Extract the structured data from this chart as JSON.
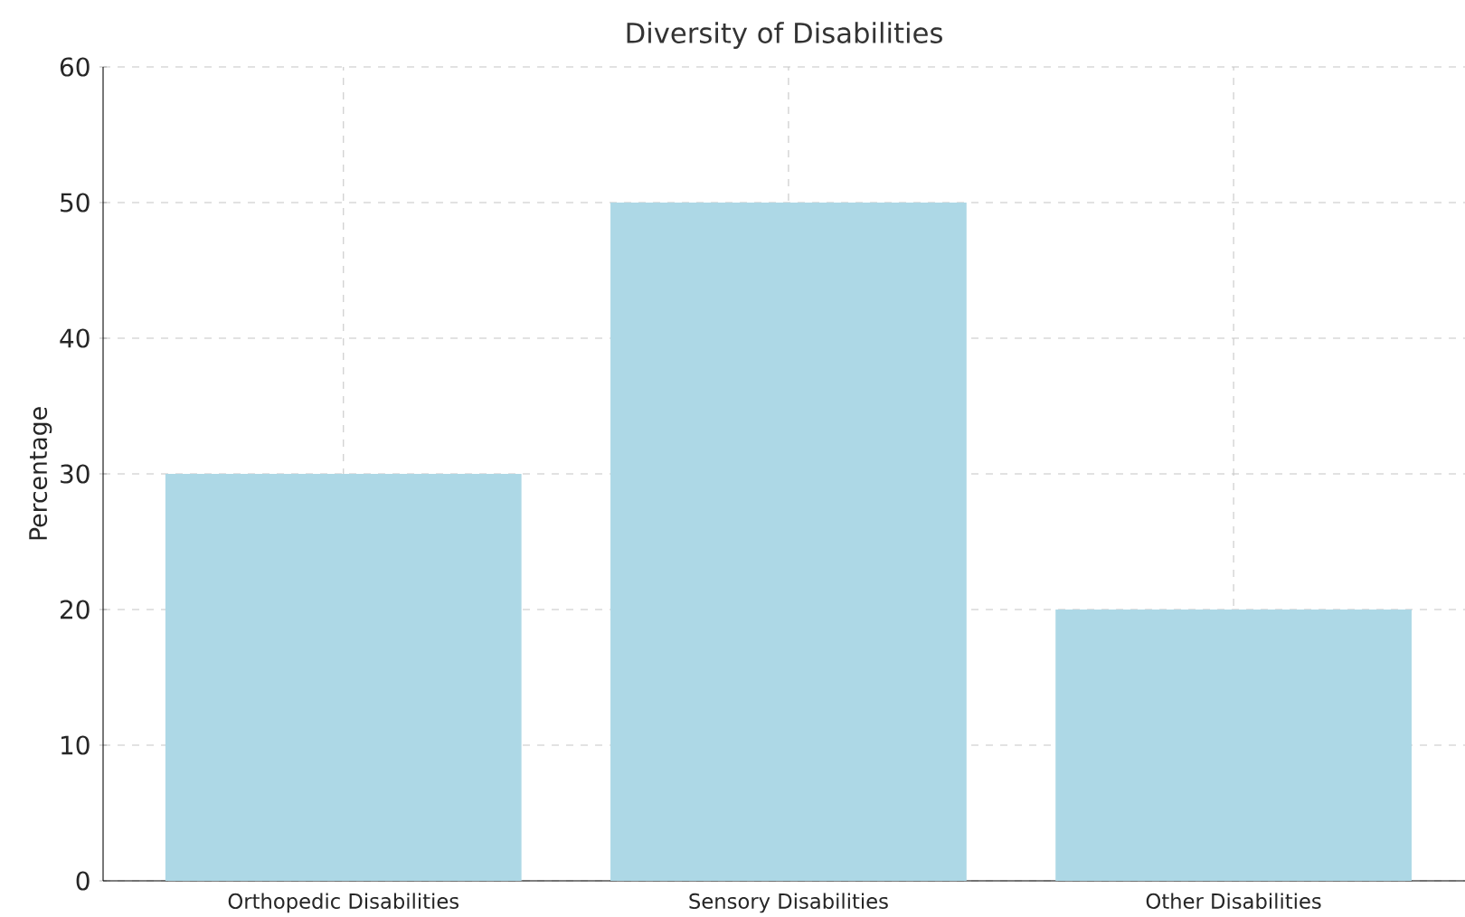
{
  "chart_data": {
    "type": "bar",
    "title": "Diversity of Disabilities",
    "ylabel": "Percentage",
    "categories": [
      "Orthopedic Disabilities",
      "Sensory Disabilities",
      "Other Disabilities"
    ],
    "values": [
      30,
      50,
      20
    ],
    "color": "#add8e6",
    "ylim": [
      0,
      60
    ],
    "yticks": [
      0,
      10,
      20,
      30,
      40,
      50,
      60
    ],
    "grid": true
  }
}
